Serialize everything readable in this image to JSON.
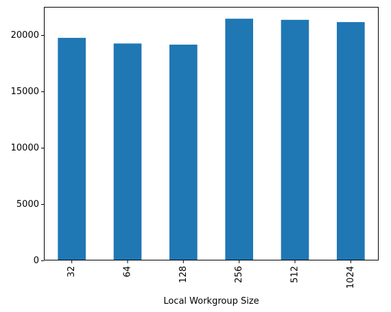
{
  "chart_data": {
    "type": "bar",
    "categories": [
      "32",
      "64",
      "128",
      "256",
      "512",
      "1024"
    ],
    "values": [
      19750,
      19250,
      19150,
      21450,
      21350,
      21150
    ],
    "title": "",
    "xlabel": "Local Workgroup Size",
    "ylabel": "",
    "ylim": [
      0,
      22500
    ],
    "yticks": [
      0,
      5000,
      10000,
      15000,
      20000
    ],
    "ytick_labels": [
      "0",
      "5000",
      "10000",
      "15000",
      "20000"
    ],
    "grid": false,
    "legend": "none",
    "bar_color": "#1f77b4",
    "xtick_rotation": "vertical"
  }
}
